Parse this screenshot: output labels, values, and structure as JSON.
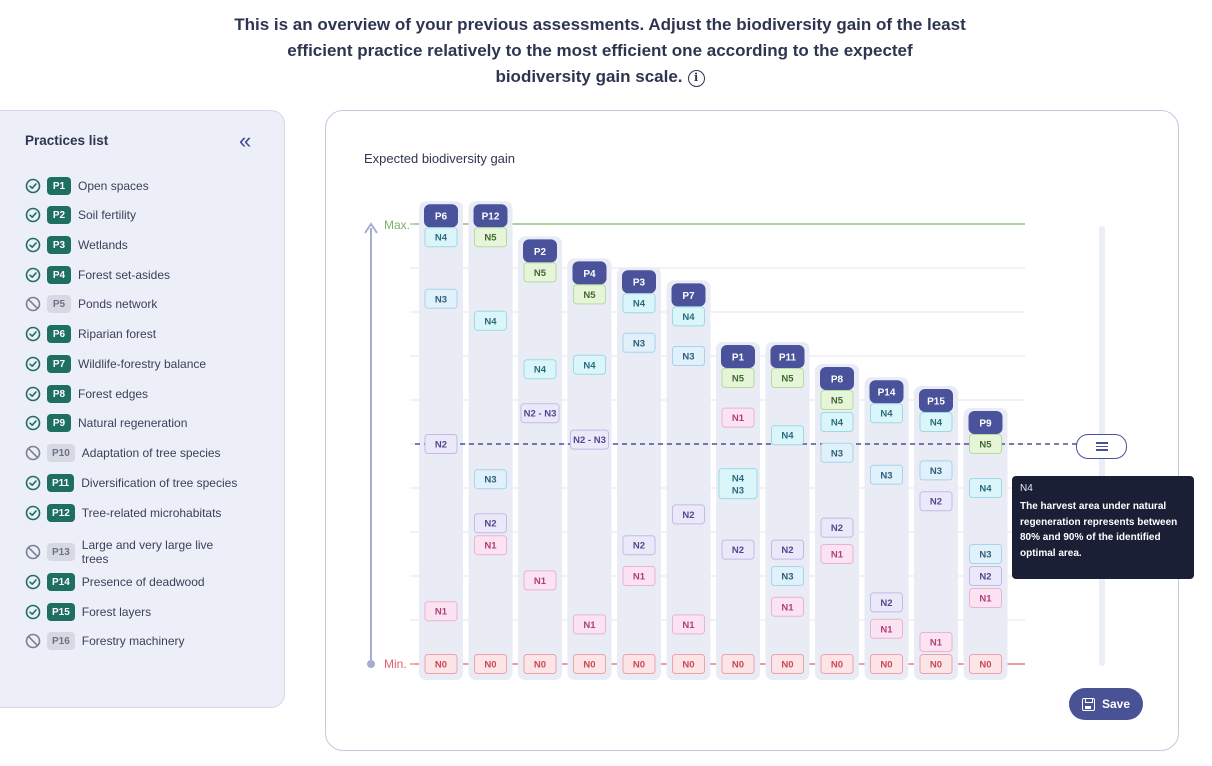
{
  "header": {
    "lines": [
      "This is an overview of your previous assessments. Adjust the biodiversity gain of the least",
      "efficient practice relatively to the most efficient one according to the expectef",
      "biodiversity gain scale."
    ],
    "info_icon": "info-icon",
    "info_glyph": "i"
  },
  "sidebar": {
    "title": "Practices list",
    "collapse_glyph": "«",
    "items": [
      {
        "code": "P1",
        "label": "Open spaces",
        "status": "done"
      },
      {
        "code": "P2",
        "label": "Soil fertility",
        "status": "done"
      },
      {
        "code": "P3",
        "label": "Wetlands",
        "status": "done"
      },
      {
        "code": "P4",
        "label": "Forest set-asides",
        "status": "done"
      },
      {
        "code": "P5",
        "label": "Ponds network",
        "status": "excluded"
      },
      {
        "code": "P6",
        "label": "Riparian forest",
        "status": "done"
      },
      {
        "code": "P7",
        "label": "Wildlife-forestry balance",
        "status": "done"
      },
      {
        "code": "P8",
        "label": "Forest edges",
        "status": "done"
      },
      {
        "code": "P9",
        "label": "Natural regeneration",
        "status": "done"
      },
      {
        "code": "P10",
        "label": "Adaptation of tree species",
        "status": "excluded"
      },
      {
        "code": "P11",
        "label": "Diversification of tree species",
        "status": "done"
      },
      {
        "code": "P12",
        "label": "Tree-related microhabitats",
        "status": "done"
      },
      {
        "code": "P13",
        "label": "Large and very large live trees",
        "status": "excluded"
      },
      {
        "code": "P14",
        "label": "Presence of deadwood",
        "status": "done"
      },
      {
        "code": "P15",
        "label": "Forest layers",
        "status": "done"
      },
      {
        "code": "P16",
        "label": "Forestry machinery",
        "status": "excluded"
      }
    ]
  },
  "chart": {
    "title": "Expected biodiversity gain",
    "max_label": "Max.",
    "min_label": "Min.",
    "colors": {
      "header": "#49529a",
      "max_line": "#7fb26a",
      "min_line": "#e0606e",
      "dashed": "#4a5296",
      "N0": [
        "#fde4e6",
        "#e9a3aa",
        "#c54b58"
      ],
      "N1": [
        "#fbe3f1",
        "#eab3d3",
        "#b0407a"
      ],
      "N2": [
        "#ebe8fa",
        "#c2bbe8",
        "#4f4a8e"
      ],
      "N3": [
        "#e0f1fb",
        "#a7d3ec",
        "#2e5f7a"
      ],
      "N4": [
        "#dbf6fb",
        "#9ed9e6",
        "#2a6c7a"
      ],
      "N5": [
        "#e6f5da",
        "#b6dc9c",
        "#3e6a2e"
      ],
      "N2 - N3": [
        "#ebe8fa",
        "#c2bbe8",
        "#4f4a8e"
      ],
      "N4 N3": [
        "#dbf6fb",
        "#9ed9e6",
        "#2a6c7a"
      ]
    }
  },
  "chart_data": {
    "type": "scatter",
    "title": "Expected biodiversity gain",
    "y_scale": [
      "Min.",
      "Max."
    ],
    "reference_level": "N2 of P6",
    "practices": [
      {
        "code": "P6",
        "levels": [
          [
            "N4",
            97
          ],
          [
            "N3",
            83
          ],
          [
            "N2",
            50
          ],
          [
            "N1",
            12
          ],
          [
            "N0",
            0
          ]
        ]
      },
      {
        "code": "P12",
        "levels": [
          [
            "N5",
            97
          ],
          [
            "N4",
            78
          ],
          [
            "N3",
            42
          ],
          [
            "N2",
            32
          ],
          [
            "N1",
            27
          ],
          [
            "N0",
            0
          ]
        ]
      },
      {
        "code": "P2",
        "levels": [
          [
            "N5",
            89
          ],
          [
            "N4",
            67
          ],
          [
            "N2 - N3",
            57
          ],
          [
            "N1",
            19
          ],
          [
            "N0",
            0
          ]
        ]
      },
      {
        "code": "P4",
        "levels": [
          [
            "N5",
            84
          ],
          [
            "N4",
            68
          ],
          [
            "N2 - N3",
            51
          ],
          [
            "N1",
            9
          ],
          [
            "N0",
            0
          ]
        ]
      },
      {
        "code": "P3",
        "levels": [
          [
            "N4",
            82
          ],
          [
            "N3",
            73
          ],
          [
            "N2",
            27
          ],
          [
            "N1",
            20
          ],
          [
            "N0",
            0
          ]
        ]
      },
      {
        "code": "P7",
        "levels": [
          [
            "N4",
            79
          ],
          [
            "N3",
            70
          ],
          [
            "N2",
            34
          ],
          [
            "N1",
            9
          ],
          [
            "N0",
            0
          ]
        ]
      },
      {
        "code": "P1",
        "levels": [
          [
            "N5",
            65
          ],
          [
            "N1",
            56
          ],
          [
            "N4 N3",
            41
          ],
          [
            "N2",
            26
          ],
          [
            "N0",
            0
          ]
        ]
      },
      {
        "code": "P11",
        "levels": [
          [
            "N5",
            65
          ],
          [
            "N4",
            52
          ],
          [
            "N2",
            26
          ],
          [
            "N3",
            20
          ],
          [
            "N1",
            13
          ],
          [
            "N0",
            0
          ]
        ]
      },
      {
        "code": "P8",
        "levels": [
          [
            "N5",
            60
          ],
          [
            "N4",
            55
          ],
          [
            "N3",
            48
          ],
          [
            "N2",
            31
          ],
          [
            "N1",
            25
          ],
          [
            "N0",
            0
          ]
        ]
      },
      {
        "code": "P14",
        "levels": [
          [
            "N4",
            57
          ],
          [
            "N3",
            43
          ],
          [
            "N2",
            14
          ],
          [
            "N1",
            8
          ],
          [
            "N0",
            0
          ]
        ]
      },
      {
        "code": "P15",
        "levels": [
          [
            "N4",
            55
          ],
          [
            "N3",
            44
          ],
          [
            "N2",
            37
          ],
          [
            "N1",
            5
          ],
          [
            "N0",
            0
          ]
        ]
      },
      {
        "code": "P9",
        "levels": [
          [
            "N5",
            50
          ],
          [
            "N4",
            40
          ],
          [
            "N3",
            25
          ],
          [
            "N2",
            20
          ],
          [
            "N1",
            15
          ],
          [
            "N0",
            0
          ]
        ]
      }
    ]
  },
  "tooltip": {
    "level": "N4",
    "text": "The harvest area under natural regeneration represents between 80% and 90% of the identified optimal area."
  },
  "save": {
    "label": "Save",
    "icon": "save-icon"
  },
  "slider": {
    "handle_icon": "drag-handle-icon"
  }
}
